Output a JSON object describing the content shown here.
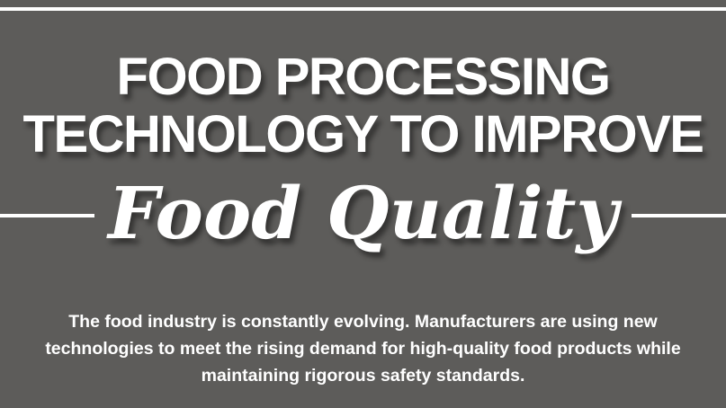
{
  "title": {
    "line1": "FOOD PROCESSING",
    "line2": "TECHNOLOGY TO IMPROVE",
    "script": "Food Quality"
  },
  "intro": "The food industry is constantly evolving. Manufacturers are using new technologies to meet the rising demand for high-quality food products while maintaining rigorous safety standards.",
  "colors": {
    "background": "#5d5c5a",
    "text": "#ffffff"
  }
}
